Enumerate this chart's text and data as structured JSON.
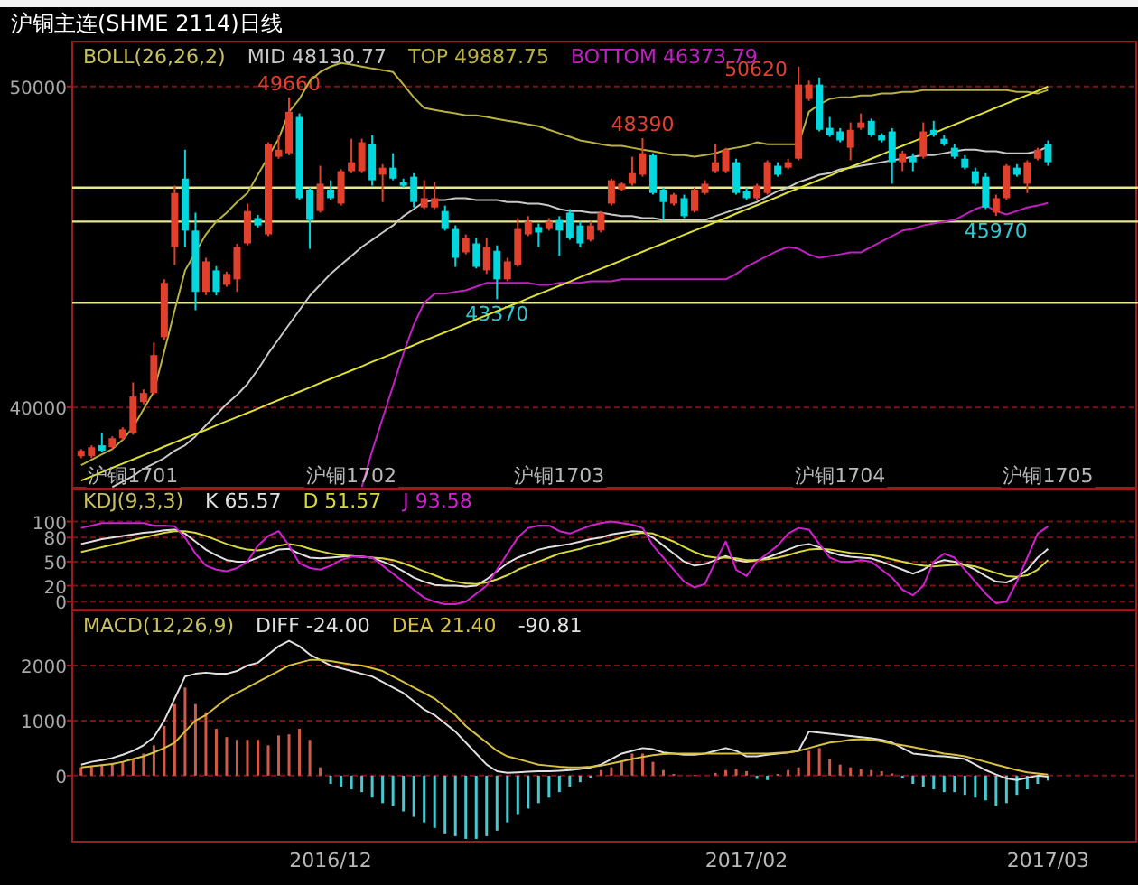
{
  "chart_data": [
    {
      "type": "candlestick",
      "title": "沪铜主连(SHME 2114)日线",
      "legend_title": "BOLL(26,26,2)",
      "legend": "top left",
      "grid": "y",
      "categories": [
        null,
        null,
        null,
        null,
        null,
        "沪铜1701",
        null,
        null,
        null,
        null,
        null,
        null,
        null,
        null,
        null,
        null,
        null,
        null,
        null,
        null,
        null,
        null,
        null,
        null,
        null,
        null,
        "沪铜1702",
        null,
        null,
        null,
        null,
        null,
        null,
        null,
        null,
        null,
        null,
        null,
        null,
        null,
        null,
        null,
        null,
        null,
        null,
        null,
        "沪铜1703",
        null,
        null,
        null,
        null,
        null,
        null,
        null,
        null,
        null,
        null,
        null,
        null,
        null,
        null,
        null,
        null,
        null,
        null,
        null,
        null,
        null,
        null,
        null,
        null,
        null,
        null,
        "沪铜1704",
        null,
        null,
        null,
        null,
        null,
        null,
        null,
        null,
        null,
        null,
        null,
        null,
        null,
        null,
        null,
        null,
        null,
        null,
        null,
        "沪铜1705"
      ],
      "ylim": [
        37500,
        51400
      ],
      "yticks": [
        40000,
        50000
      ],
      "ohlc": [
        [
          38480,
          38700,
          38420,
          38650
        ],
        [
          38480,
          38820,
          38420,
          38760
        ],
        [
          38820,
          39210,
          38600,
          38650
        ],
        [
          38760,
          39100,
          38700,
          39040
        ],
        [
          39040,
          39380,
          38980,
          39320
        ],
        [
          39210,
          40780,
          39150,
          40340
        ],
        [
          40170,
          40560,
          40100,
          40450
        ],
        [
          40450,
          42020,
          40400,
          41630
        ],
        [
          42190,
          43990,
          42100,
          43880
        ],
        [
          45000,
          46910,
          44440,
          46680
        ],
        [
          47130,
          48030,
          45000,
          45510
        ],
        [
          45510,
          46070,
          43030,
          43600
        ],
        [
          43600,
          44660,
          43500,
          44550
        ],
        [
          44270,
          44400,
          43490,
          43600
        ],
        [
          43820,
          44230,
          43760,
          44160
        ],
        [
          43990,
          45100,
          43600,
          45000
        ],
        [
          45110,
          46350,
          45050,
          46120
        ],
        [
          45900,
          46000,
          45600,
          45670
        ],
        [
          45390,
          48260,
          45340,
          48200
        ],
        [
          47810,
          48480,
          47750,
          48030
        ],
        [
          47920,
          49660,
          47860,
          49210
        ],
        [
          49050,
          49160,
          46460,
          46520
        ],
        [
          46790,
          46850,
          44940,
          45840
        ],
        [
          46120,
          47530,
          46070,
          46970
        ],
        [
          46790,
          47080,
          46460,
          46520
        ],
        [
          46350,
          47420,
          46290,
          47360
        ],
        [
          47360,
          48370,
          47300,
          47640
        ],
        [
          47360,
          48370,
          47300,
          48260
        ],
        [
          48200,
          48480,
          46910,
          47080
        ],
        [
          47250,
          47580,
          46400,
          47470
        ],
        [
          47470,
          47920,
          47080,
          47130
        ],
        [
          47020,
          47130,
          46850,
          46910
        ],
        [
          47190,
          47300,
          46230,
          46400
        ],
        [
          46230,
          47080,
          46180,
          46520
        ],
        [
          46230,
          47020,
          46180,
          46520
        ],
        [
          46120,
          46290,
          45510,
          45560
        ],
        [
          45560,
          45670,
          44380,
          44660
        ],
        [
          44830,
          45390,
          44770,
          45280
        ],
        [
          45110,
          45280,
          44330,
          44380
        ],
        [
          44270,
          45280,
          44160,
          45000
        ],
        [
          44880,
          45050,
          43370,
          43990
        ],
        [
          43990,
          44660,
          43930,
          44550
        ],
        [
          44440,
          45900,
          44380,
          45560
        ],
        [
          45390,
          45960,
          45340,
          45790
        ],
        [
          45620,
          45730,
          45000,
          45450
        ],
        [
          45560,
          45900,
          45510,
          45790
        ],
        [
          45840,
          45960,
          44720,
          45510
        ],
        [
          46070,
          46180,
          45220,
          45280
        ],
        [
          45670,
          45790,
          44990,
          45110
        ],
        [
          45220,
          45790,
          45170,
          45670
        ],
        [
          45510,
          46120,
          45450,
          46070
        ],
        [
          46350,
          47130,
          46290,
          47080
        ],
        [
          46790,
          47020,
          46740,
          46970
        ],
        [
          46970,
          47810,
          46910,
          47300
        ],
        [
          47250,
          48390,
          47190,
          47920
        ],
        [
          47860,
          47920,
          46630,
          46680
        ],
        [
          46790,
          46850,
          45840,
          46400
        ],
        [
          46350,
          46680,
          46290,
          46630
        ],
        [
          46520,
          46630,
          45900,
          45960
        ],
        [
          46120,
          46850,
          46070,
          46790
        ],
        [
          46680,
          47080,
          46630,
          46970
        ],
        [
          47360,
          48200,
          47300,
          47640
        ],
        [
          47360,
          48090,
          47300,
          48030
        ],
        [
          47640,
          47750,
          46630,
          46680
        ],
        [
          46740,
          46850,
          46460,
          46520
        ],
        [
          46520,
          46970,
          46460,
          46910
        ],
        [
          46680,
          47700,
          46630,
          47640
        ],
        [
          47530,
          47640,
          47190,
          47250
        ],
        [
          47470,
          47750,
          47420,
          47640
        ],
        [
          47750,
          50620,
          47700,
          50060
        ],
        [
          49610,
          50180,
          49550,
          50060
        ],
        [
          50060,
          50280,
          48600,
          48650
        ],
        [
          48710,
          49050,
          48430,
          48480
        ],
        [
          48600,
          48700,
          48260,
          48320
        ],
        [
          48090,
          48880,
          47700,
          48650
        ],
        [
          48710,
          49160,
          48650,
          48880
        ],
        [
          48930,
          49000,
          48430,
          48480
        ],
        [
          48480,
          48540,
          48260,
          48320
        ],
        [
          48600,
          48700,
          46970,
          47640
        ],
        [
          47640,
          48000,
          47360,
          47920
        ],
        [
          47810,
          47920,
          47360,
          47640
        ],
        [
          47810,
          48880,
          47750,
          48600
        ],
        [
          48650,
          48930,
          48430,
          48480
        ],
        [
          48370,
          48480,
          48150,
          48200
        ],
        [
          48090,
          48200,
          47750,
          47810
        ],
        [
          47750,
          47860,
          47420,
          47470
        ],
        [
          47360,
          47470,
          46910,
          46970
        ],
        [
          47190,
          47300,
          46180,
          46230
        ],
        [
          46070,
          46630,
          45970,
          46520
        ],
        [
          46520,
          47580,
          46460,
          47530
        ],
        [
          47470,
          47580,
          47190,
          47250
        ],
        [
          46970,
          47700,
          46680,
          47640
        ],
        [
          47750,
          48090,
          47700,
          48030
        ],
        [
          48200,
          48320,
          47530,
          47640
        ]
      ],
      "colors": [
        "#e0402c",
        "#e0402c",
        "#00d8e0",
        "#e0402c",
        "#e0402c",
        "#e0402c",
        "#e0402c",
        "#e0402c",
        "#e0402c",
        "#e0402c",
        "#00d8e0",
        "#00d8e0",
        "#e0402c",
        "#00d8e0",
        "#e0402c",
        "#e0402c",
        "#e0402c",
        "#00d8e0",
        "#e0402c",
        "#e0402c",
        "#e0402c",
        "#00d8e0",
        "#00d8e0",
        "#e0402c",
        "#00d8e0",
        "#e0402c",
        "#e0402c",
        "#e0402c",
        "#00d8e0",
        "#e0402c",
        "#00d8e0",
        "#00d8e0",
        "#00d8e0",
        "#e0402c",
        "#e0402c",
        "#00d8e0",
        "#00d8e0",
        "#e0402c",
        "#00d8e0",
        "#e0402c",
        "#00d8e0",
        "#e0402c",
        "#e0402c",
        "#e0402c",
        "#00d8e0",
        "#e0402c",
        "#00d8e0",
        "#00d8e0",
        "#00d8e0",
        "#e0402c",
        "#e0402c",
        "#e0402c",
        "#e0402c",
        "#e0402c",
        "#e0402c",
        "#00d8e0",
        "#00d8e0",
        "#e0402c",
        "#00d8e0",
        "#e0402c",
        "#e0402c",
        "#e0402c",
        "#e0402c",
        "#00d8e0",
        "#00d8e0",
        "#e0402c",
        "#e0402c",
        "#00d8e0",
        "#e0402c",
        "#e0402c",
        "#e0402c",
        "#00d8e0",
        "#00d8e0",
        "#00d8e0",
        "#e0402c",
        "#e0402c",
        "#00d8e0",
        "#00d8e0",
        "#00d8e0",
        "#e0402c",
        "#00d8e0",
        "#e0402c",
        "#00d8e0",
        "#00d8e0",
        "#00d8e0",
        "#00d8e0",
        "#00d8e0",
        "#00d8e0",
        "#e0402c",
        "#e0402c",
        "#00d8e0",
        "#e0402c",
        "#e0402c",
        "#00d8e0"
      ],
      "value_labels": [
        null,
        null,
        null,
        null,
        null,
        null,
        null,
        null,
        null,
        null,
        null,
        null,
        null,
        null,
        null,
        null,
        null,
        null,
        null,
        null,
        "49660",
        null,
        null,
        null,
        null,
        null,
        null,
        null,
        null,
        null,
        null,
        null,
        null,
        null,
        null,
        null,
        null,
        null,
        null,
        null,
        "43370",
        null,
        null,
        null,
        null,
        null,
        null,
        null,
        null,
        null,
        null,
        null,
        null,
        null,
        "48390",
        null,
        null,
        null,
        null,
        null,
        null,
        null,
        null,
        null,
        null,
        null,
        null,
        null,
        null,
        "50620",
        null,
        null,
        null,
        null,
        null,
        null,
        null,
        null,
        null,
        null,
        null,
        null,
        null,
        null,
        null,
        null,
        null,
        null,
        "45970",
        null,
        null,
        null,
        null,
        null
      ],
      "ref_lines": [
        {
          "axis": "y",
          "value": 46850,
          "color": "#e8e890"
        },
        {
          "axis": "y",
          "value": 45790,
          "color": "#e8e890"
        },
        {
          "axis": "y",
          "value": 43260,
          "color": "#e8e890"
        }
      ],
      "series": [
        {
          "name": "MID 48130.77",
          "type": "line",
          "color": "#c8c8c8",
          "values": [
            null,
            null,
            null,
            37520,
            37690,
            37860,
            38090,
            38250,
            38420,
            38650,
            38820,
            39100,
            39440,
            39770,
            40110,
            40390,
            40730,
            41180,
            41680,
            42130,
            42580,
            43030,
            43480,
            43820,
            44160,
            44440,
            44720,
            45000,
            45220,
            45450,
            45670,
            45960,
            46180,
            46400,
            46460,
            46460,
            46520,
            46520,
            46460,
            46460,
            46460,
            46400,
            46400,
            46350,
            46350,
            46290,
            46180,
            46120,
            46120,
            46070,
            46070,
            46010,
            45960,
            45960,
            45900,
            45900,
            45840,
            45840,
            45840,
            45840,
            45840,
            45960,
            46070,
            46180,
            46290,
            46400,
            46570,
            46740,
            46850,
            47020,
            47130,
            47250,
            47300,
            47420,
            47470,
            47530,
            47580,
            47640,
            47700,
            47750,
            47810,
            47860,
            47860,
            47920,
            47980,
            48030,
            48030,
            47980,
            47980,
            47920,
            47920,
            47920,
            47980,
            48130
          ]
        },
        {
          "name": "TOP 49887.75",
          "type": "line",
          "color": "#b8b040",
          "values": [
            38200,
            38370,
            38540,
            38700,
            38990,
            39380,
            39940,
            40500,
            41740,
            43030,
            44270,
            44830,
            45390,
            45790,
            46070,
            46400,
            46680,
            47250,
            47810,
            48370,
            49210,
            49610,
            50170,
            50450,
            50620,
            50730,
            50680,
            50620,
            50560,
            50510,
            50450,
            50060,
            49660,
            49330,
            49270,
            49210,
            49160,
            49100,
            49100,
            49050,
            48990,
            48930,
            48880,
            48820,
            48760,
            48650,
            48540,
            48430,
            48320,
            48260,
            48200,
            48150,
            48150,
            48090,
            48030,
            47980,
            47920,
            47860,
            47860,
            47810,
            47860,
            47920,
            48030,
            48090,
            48150,
            48260,
            48200,
            48200,
            48200,
            48200,
            49210,
            49440,
            49610,
            49660,
            49660,
            49720,
            49720,
            49780,
            49780,
            49830,
            49830,
            49890,
            49890,
            49890,
            49890,
            49890,
            49890,
            49890,
            49890,
            49890,
            49830,
            49830,
            49780,
            49890
          ]
        },
        {
          "name": "BOTTOM 46373.79",
          "type": "line",
          "color": "#c020c0",
          "values": [
            null,
            null,
            null,
            null,
            null,
            null,
            null,
            null,
            null,
            null,
            null,
            null,
            null,
            null,
            null,
            null,
            null,
            null,
            null,
            null,
            null,
            null,
            null,
            null,
            null,
            null,
            null,
            37520,
            38650,
            39660,
            40670,
            41680,
            42580,
            43260,
            43540,
            43540,
            43600,
            43650,
            43760,
            43880,
            43880,
            43880,
            43880,
            43880,
            43820,
            43820,
            43880,
            43880,
            43880,
            43930,
            43930,
            43930,
            43990,
            43990,
            43990,
            43990,
            43990,
            43990,
            43990,
            43990,
            43990,
            43990,
            43990,
            44160,
            44380,
            44550,
            44720,
            44880,
            45000,
            44940,
            44770,
            44660,
            44720,
            44770,
            44830,
            44830,
            45000,
            45170,
            45340,
            45510,
            45560,
            45670,
            45730,
            45790,
            45840,
            46010,
            46180,
            46290,
            46120,
            46010,
            46120,
            46230,
            46290,
            46370
          ]
        },
        {
          "type": "line",
          "color": "#e0e030",
          "values": [
            37720,
            37850,
            37980,
            38120,
            38250,
            38380,
            38510,
            38640,
            38780,
            38910,
            39040,
            39170,
            39300,
            39440,
            39570,
            39700,
            39830,
            39960,
            40100,
            40230,
            40360,
            40490,
            40620,
            40760,
            40890,
            41020,
            41150,
            41280,
            41420,
            41550,
            41680,
            41810,
            41940,
            42080,
            42210,
            42340,
            42470,
            42600,
            42740,
            42870,
            43000,
            43130,
            43260,
            43400,
            43530,
            43660,
            43790,
            43920,
            44060,
            44190,
            44320,
            44450,
            44580,
            44720,
            44850,
            44980,
            45110,
            45240,
            45380,
            45510,
            45640,
            45770,
            45900,
            46040,
            46170,
            46300,
            46430,
            46560,
            46700,
            46830,
            46960,
            47090,
            47220,
            47360,
            47490,
            47620,
            47750,
            47880,
            48020,
            48150,
            48280,
            48410,
            48540,
            48680,
            48810,
            48940,
            49070,
            49200,
            49340,
            49470,
            49600,
            49730,
            49860,
            50000
          ]
        }
      ]
    },
    {
      "type": "line",
      "legend_title": "KDJ(9,3,3)",
      "legend": "top left",
      "grid": "y",
      "tick_labels": "y",
      "categories": [
        null,
        null,
        null,
        null,
        null,
        null,
        null,
        null,
        null,
        null,
        null,
        null,
        null,
        null,
        null,
        null,
        null,
        null,
        null,
        null,
        null,
        null,
        null,
        null,
        null,
        null,
        null,
        null,
        null,
        null,
        null,
        null,
        null,
        null,
        null,
        null,
        null,
        null,
        null,
        null,
        null,
        null,
        null,
        null,
        null,
        null,
        null,
        null,
        null,
        null,
        null,
        null,
        null,
        null,
        null,
        null,
        null,
        null,
        null,
        null,
        null,
        null,
        null,
        null,
        null,
        null,
        null,
        null,
        null,
        null,
        null,
        null,
        null,
        null,
        null,
        null,
        null,
        null,
        null,
        null,
        null,
        null,
        null,
        null,
        null,
        null,
        null,
        null,
        null,
        null,
        null,
        null,
        null,
        null
      ],
      "ylim": [
        -10,
        140
      ],
      "yticks": [
        0,
        20,
        50,
        80,
        100
      ],
      "series": [
        {
          "name": "K 65.57",
          "color": "#e0e0e0",
          "values": [
            72,
            75,
            78,
            80,
            82,
            84,
            86,
            87,
            89,
            90,
            85,
            75,
            65,
            58,
            52,
            50,
            50,
            55,
            60,
            65,
            66,
            60,
            55,
            54,
            55,
            56,
            57,
            56,
            55,
            50,
            45,
            38,
            30,
            25,
            21,
            20,
            20,
            19,
            20,
            28,
            38,
            48,
            55,
            60,
            65,
            68,
            70,
            72,
            75,
            78,
            80,
            84,
            86,
            88,
            87,
            80,
            70,
            60,
            50,
            45,
            47,
            52,
            57,
            52,
            50,
            52,
            55,
            60,
            65,
            70,
            72,
            68,
            62,
            58,
            56,
            55,
            54,
            50,
            45,
            40,
            35,
            40,
            48,
            52,
            50,
            46,
            40,
            32,
            25,
            24,
            30,
            40,
            55,
            66
          ]
        },
        {
          "name": "D 51.57",
          "color": "#d8d840",
          "values": [
            62,
            65,
            68,
            71,
            74,
            77,
            80,
            83,
            86,
            88,
            88,
            86,
            82,
            77,
            72,
            68,
            65,
            64,
            66,
            70,
            72,
            70,
            66,
            63,
            60,
            58,
            57,
            56,
            55,
            54,
            52,
            48,
            43,
            38,
            33,
            28,
            25,
            23,
            22,
            24,
            28,
            33,
            40,
            45,
            50,
            55,
            60,
            63,
            66,
            70,
            73,
            76,
            80,
            84,
            86,
            85,
            80,
            75,
            68,
            62,
            57,
            55,
            55,
            54,
            52,
            52,
            53,
            55,
            58,
            62,
            65,
            66,
            65,
            63,
            61,
            60,
            58,
            56,
            53,
            50,
            47,
            45,
            44,
            45,
            46,
            46,
            44,
            40,
            36,
            32,
            31,
            33,
            40,
            52
          ]
        },
        {
          "name": "J 93.58",
          "color": "#d020d0",
          "values": [
            92,
            95,
            98,
            98,
            98,
            98,
            98,
            95,
            95,
            94,
            80,
            60,
            45,
            40,
            38,
            42,
            50,
            70,
            82,
            88,
            70,
            48,
            42,
            40,
            45,
            52,
            56,
            56,
            55,
            45,
            35,
            25,
            15,
            5,
            0,
            -3,
            -3,
            0,
            10,
            20,
            40,
            60,
            80,
            92,
            95,
            95,
            88,
            85,
            90,
            95,
            98,
            100,
            98,
            96,
            92,
            70,
            55,
            40,
            25,
            18,
            22,
            50,
            75,
            40,
            32,
            50,
            60,
            70,
            85,
            92,
            90,
            72,
            55,
            50,
            50,
            52,
            50,
            40,
            30,
            15,
            8,
            20,
            50,
            60,
            55,
            40,
            25,
            10,
            -2,
            0,
            25,
            55,
            85,
            94
          ]
        }
      ]
    },
    {
      "type": "line",
      "legend_title": "MACD(12,26,9)",
      "legend": "top left",
      "grid": "y",
      "annotations": [
        "-90.81"
      ],
      "categories": [
        null,
        null,
        null,
        null,
        null,
        null,
        null,
        null,
        null,
        null,
        null,
        null,
        null,
        null,
        null,
        null,
        null,
        null,
        null,
        null,
        null,
        null,
        null,
        null,
        "2016/12",
        null,
        null,
        null,
        null,
        null,
        null,
        null,
        null,
        null,
        null,
        null,
        null,
        null,
        null,
        null,
        null,
        null,
        null,
        null,
        null,
        null,
        null,
        null,
        null,
        null,
        null,
        null,
        null,
        null,
        null,
        null,
        null,
        null,
        null,
        null,
        null,
        null,
        null,
        null,
        "2017/02",
        null,
        null,
        null,
        null,
        null,
        null,
        null,
        null,
        null,
        null,
        null,
        null,
        null,
        null,
        null,
        null,
        null,
        null,
        null,
        null,
        null,
        null,
        null,
        null,
        null,
        null,
        null,
        null,
        "2017/03"
      ],
      "ylim": [
        -1200,
        3000
      ],
      "yticks": [
        0,
        1000,
        2000
      ],
      "series": [
        {
          "type": "bar",
          "colors": [
            "#d05a48",
            "#d05a48",
            "#d05a48",
            "#d05a48",
            "#d05a48",
            "#d05a48",
            "#d05a48",
            "#d05a48",
            "#d05a48",
            "#d05a48",
            "#d05a48",
            "#d05a48",
            "#d05a48",
            "#d05a48",
            "#d05a48",
            "#d05a48",
            "#d05a48",
            "#d05a48",
            "#d05a48",
            "#d05a48",
            "#d05a48",
            "#d05a48",
            "#d05a48",
            "#d05a48",
            "#48c8d0",
            "#48c8d0",
            "#48c8d0",
            "#48c8d0",
            "#48c8d0",
            "#48c8d0",
            "#48c8d0",
            "#48c8d0",
            "#48c8d0",
            "#48c8d0",
            "#48c8d0",
            "#48c8d0",
            "#48c8d0",
            "#48c8d0",
            "#48c8d0",
            "#48c8d0",
            "#48c8d0",
            "#48c8d0",
            "#48c8d0",
            "#48c8d0",
            "#48c8d0",
            "#48c8d0",
            "#48c8d0",
            "#48c8d0",
            "#48c8d0",
            "#48c8d0",
            "#d05a48",
            "#d05a48",
            "#d05a48",
            "#d05a48",
            "#d05a48",
            "#d05a48",
            "#d05a48",
            "#d05a48",
            null,
            "#d05a48",
            null,
            "#d05a48",
            "#d05a48",
            "#d05a48",
            "#d05a48",
            "#48c8d0",
            "#48c8d0",
            "#d05a48",
            "#d05a48",
            "#d05a48",
            "#d05a48",
            "#d05a48",
            "#d05a48",
            "#d05a48",
            "#d05a48",
            "#d05a48",
            "#d05a48",
            "#d05a48",
            "#d05a48",
            "#48c8d0",
            "#48c8d0",
            "#48c8d0",
            "#48c8d0",
            "#48c8d0",
            "#48c8d0",
            "#48c8d0",
            "#48c8d0",
            "#48c8d0",
            "#48c8d0",
            "#48c8d0",
            "#48c8d0",
            "#48c8d0",
            "#48c8d0",
            "#48c8d0"
          ],
          "values": [
            150,
            170,
            200,
            230,
            260,
            300,
            400,
            550,
            900,
            1300,
            1600,
            1300,
            1150,
            850,
            700,
            650,
            650,
            650,
            550,
            730,
            750,
            850,
            650,
            150,
            -150,
            -200,
            -250,
            -300,
            -400,
            -500,
            -550,
            -650,
            -750,
            -850,
            -950,
            -1050,
            -1100,
            -1150,
            -1150,
            -1100,
            -1000,
            -850,
            -700,
            -600,
            -500,
            -400,
            -300,
            -200,
            -120,
            -50,
            100,
            150,
            250,
            400,
            400,
            250,
            100,
            30,
            null,
            10,
            null,
            50,
            100,
            120,
            80,
            -60,
            -80,
            30,
            100,
            150,
            450,
            500,
            300,
            200,
            150,
            120,
            100,
            80,
            40,
            -50,
            -150,
            -200,
            -250,
            -300,
            -300,
            -350,
            -400,
            -450,
            -550,
            -500,
            -350,
            -250,
            -150,
            -90
          ]
        },
        {
          "name": "DIFF -24.00",
          "type": "line",
          "color": "#e0e0e0",
          "values": [
            200,
            250,
            280,
            320,
            380,
            450,
            550,
            700,
            1000,
            1400,
            1800,
            1850,
            1870,
            1850,
            1850,
            1900,
            2000,
            2050,
            2200,
            2350,
            2450,
            2350,
            2200,
            2100,
            2000,
            1950,
            1900,
            1850,
            1800,
            1700,
            1600,
            1500,
            1350,
            1200,
            1100,
            950,
            800,
            600,
            400,
            200,
            80,
            50,
            60,
            70,
            80,
            80,
            90,
            100,
            120,
            150,
            200,
            300,
            400,
            450,
            500,
            480,
            420,
            400,
            380,
            380,
            400,
            450,
            500,
            450,
            350,
            350,
            380,
            400,
            420,
            450,
            800,
            780,
            760,
            740,
            720,
            700,
            680,
            650,
            600,
            500,
            400,
            380,
            360,
            350,
            330,
            300,
            200,
            100,
            20,
            -50,
            -80,
            -40,
            0,
            -20
          ]
        },
        {
          "name": "DEA 21.40",
          "type": "line",
          "color": "#d8c040",
          "values": [
            150,
            170,
            190,
            210,
            250,
            300,
            350,
            420,
            500,
            600,
            800,
            1000,
            1100,
            1250,
            1400,
            1500,
            1600,
            1700,
            1800,
            1900,
            2000,
            2050,
            2100,
            2100,
            2080,
            2050,
            2020,
            2000,
            1950,
            1900,
            1800,
            1700,
            1600,
            1500,
            1400,
            1250,
            1100,
            900,
            750,
            600,
            450,
            350,
            300,
            250,
            200,
            180,
            160,
            150,
            150,
            160,
            180,
            220,
            260,
            300,
            340,
            370,
            390,
            400,
            400,
            400,
            400,
            400,
            400,
            400,
            400,
            400,
            400,
            410,
            420,
            450,
            500,
            550,
            600,
            620,
            650,
            660,
            650,
            620,
            580,
            550,
            520,
            480,
            440,
            400,
            380,
            350,
            300,
            250,
            200,
            150,
            100,
            60,
            40,
            20
          ]
        }
      ]
    }
  ]
}
